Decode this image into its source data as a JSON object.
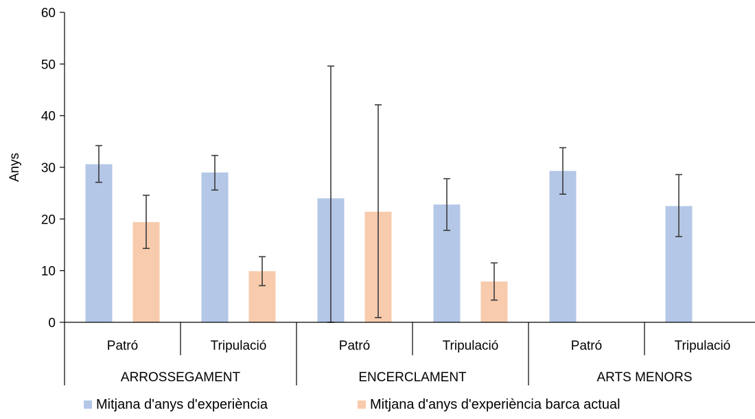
{
  "chart_data": {
    "type": "bar",
    "title": "",
    "ylabel": "Anys",
    "xlabel": "",
    "ylim": [
      0,
      60
    ],
    "yticks": [
      0,
      10,
      20,
      30,
      40,
      50,
      60
    ],
    "grid": false,
    "legend_position": "bottom",
    "groups": [
      {
        "label": "ARROSSEGAMENT",
        "categories": [
          "Patró",
          "Tripulació"
        ]
      },
      {
        "label": "ENCERCLAMENT",
        "categories": [
          "Patró",
          "Tripulació"
        ]
      },
      {
        "label": "ARTS MENORS",
        "categories": [
          "Patró",
          "Tripulació"
        ]
      }
    ],
    "series": [
      {
        "name": "Mitjana d'anys d'experiència",
        "color": "#b4c7e7",
        "values": [
          30.6,
          29.0,
          24.0,
          22.8,
          29.3,
          22.5
        ],
        "error_low": [
          27.1,
          25.6,
          0,
          17.8,
          24.8,
          16.6
        ],
        "error_high": [
          34.2,
          32.3,
          49.6,
          27.8,
          33.8,
          28.6
        ]
      },
      {
        "name": "Mitjana d'anys d'experiència barca actual",
        "color": "#f8cbad",
        "values": [
          19.4,
          9.9,
          21.4,
          7.9,
          null,
          null
        ],
        "error_low": [
          14.3,
          7.1,
          0.9,
          4.3,
          null,
          null
        ],
        "error_high": [
          24.6,
          12.7,
          42.1,
          11.5,
          null,
          null
        ]
      }
    ]
  }
}
